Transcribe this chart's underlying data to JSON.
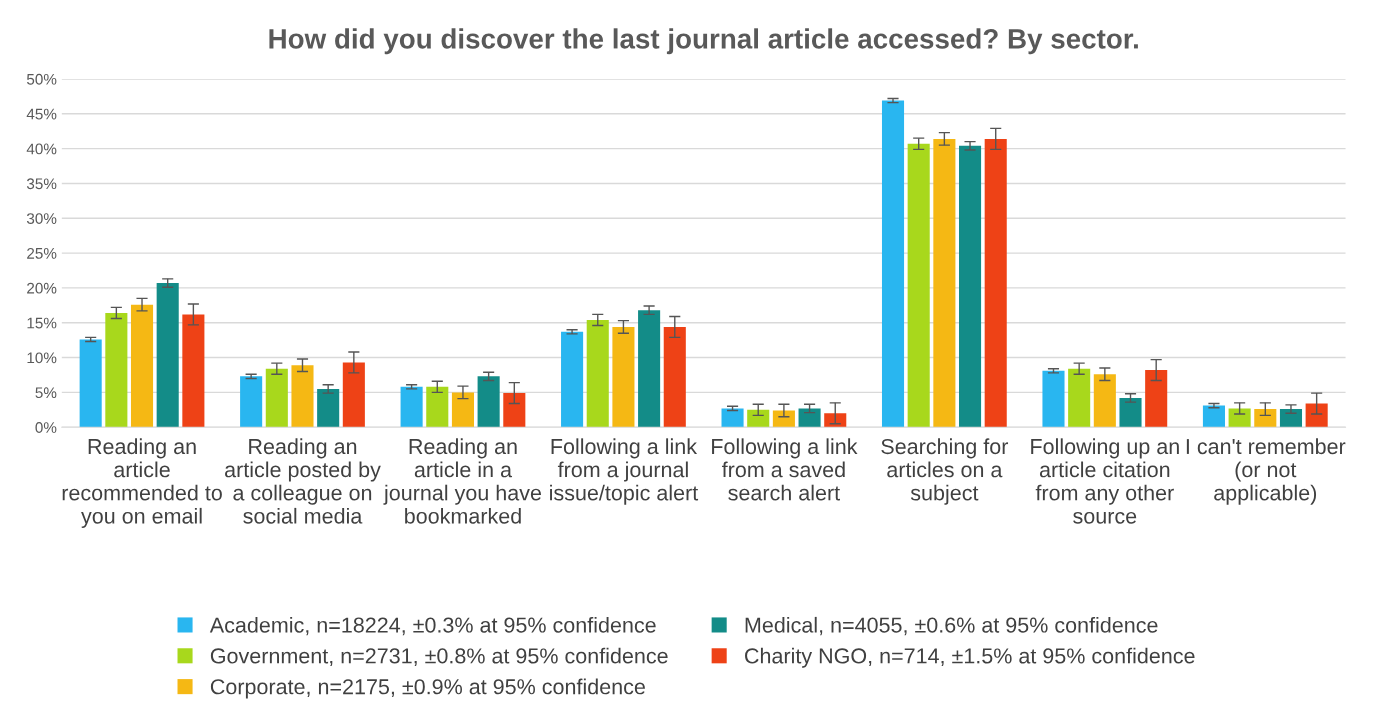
{
  "chart_data": {
    "type": "bar",
    "title": "How did you discover the last journal article accessed? By sector.",
    "categories": [
      "Reading an article recommended to you on email",
      "Reading an article posted by a colleague on social media",
      "Reading an article in a journal you have bookmarked",
      "Following a link from a journal issue/topic alert",
      "Following a link from a saved search alert",
      "Searching for articles on a subject",
      "Following up an article citation from any other source",
      "I can't remember (or not applicable)"
    ],
    "series": [
      {
        "name": "Academic, n=18224, ±0.3% at 95% confidence",
        "color": "#29b6f0",
        "values": [
          12.6,
          7.3,
          5.8,
          13.7,
          2.7,
          46.9,
          8.1,
          3.1
        ],
        "errors": [
          0.3,
          0.3,
          0.3,
          0.3,
          0.3,
          0.3,
          0.3,
          0.3
        ]
      },
      {
        "name": "Government, n=2731, ±0.8% at 95% confidence",
        "color": "#a8d81c",
        "values": [
          16.4,
          8.4,
          5.8,
          15.4,
          2.5,
          40.7,
          8.4,
          2.7
        ],
        "errors": [
          0.8,
          0.8,
          0.8,
          0.8,
          0.8,
          0.8,
          0.8,
          0.8
        ]
      },
      {
        "name": "Corporate, n=2175, ±0.9% at 95% confidence",
        "color": "#f5b814",
        "values": [
          17.6,
          8.9,
          5.0,
          14.4,
          2.4,
          41.4,
          7.6,
          2.6
        ],
        "errors": [
          0.9,
          0.9,
          0.9,
          0.9,
          0.9,
          0.9,
          0.9,
          0.9
        ]
      },
      {
        "name": "Medical, n=4055, ±0.6% at 95% confidence",
        "color": "#138c88",
        "values": [
          20.7,
          5.5,
          7.3,
          16.8,
          2.7,
          40.4,
          4.2,
          2.6
        ],
        "errors": [
          0.6,
          0.6,
          0.6,
          0.6,
          0.6,
          0.6,
          0.6,
          0.6
        ]
      },
      {
        "name": "Charity NGO, n=714, ±1.5% at 95% confidence",
        "color": "#ee4216",
        "values": [
          16.2,
          9.3,
          4.9,
          14.4,
          2.0,
          41.4,
          8.2,
          3.4
        ],
        "errors": [
          1.5,
          1.5,
          1.5,
          1.5,
          1.5,
          1.5,
          1.5,
          1.5
        ]
      }
    ],
    "ylim": [
      0,
      50
    ],
    "yticks": [
      {
        "value": 0,
        "label": "0%"
      },
      {
        "value": 5,
        "label": "5%"
      },
      {
        "value": 10,
        "label": "10%"
      },
      {
        "value": 15,
        "label": "15%"
      },
      {
        "value": 20,
        "label": "20%"
      },
      {
        "value": 25,
        "label": "25%"
      },
      {
        "value": 30,
        "label": "30%"
      },
      {
        "value": 35,
        "label": "35%"
      },
      {
        "value": 40,
        "label": "40%"
      },
      {
        "value": 45,
        "label": "45%"
      },
      {
        "value": 50,
        "label": "50%"
      }
    ],
    "grid": "y",
    "legend": "bottom"
  }
}
